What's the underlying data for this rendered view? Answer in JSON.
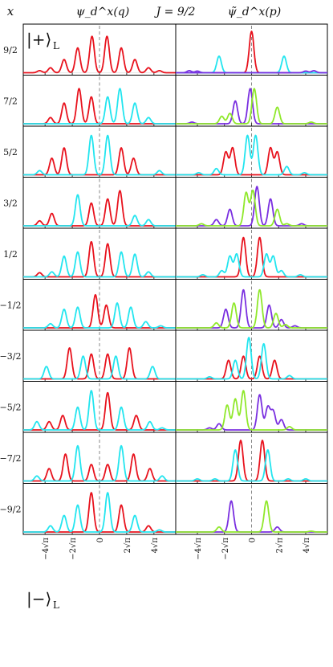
{
  "header": {
    "x_label": "x",
    "left_title": "ψ_d^x(q)",
    "j_label": "J = 9/2",
    "right_title": "ψ̃_d^x(p)"
  },
  "kets": {
    "top": "|+⟩",
    "bottom": "|−⟩",
    "subscript": "L"
  },
  "colors": {
    "red": "#e8121d",
    "cyan": "#22e5ef",
    "purple": "#7a2fe0",
    "green": "#8fe82a",
    "frame": "#000000",
    "dashed": "#888888"
  },
  "chart_data": {
    "type": "line",
    "description_of_axes": "Two columns of stacked panels sharing x-axis in units of sqrt(pi); rows indexed by x",
    "row_labels": [
      "9/2",
      "7/2",
      "5/2",
      "3/2",
      "1/2",
      "−1/2",
      "−3/2",
      "−5/2",
      "−7/2",
      "−9/2"
    ],
    "x_ticks": [
      "−4√π",
      "−2√π",
      "0",
      "2√π",
      "4√π"
    ],
    "x_tick_values": [
      -4,
      -2,
      0,
      2,
      4
    ],
    "xlim": [
      -5.6,
      5.6
    ],
    "panels": {
      "left": [
        [
          {
            "c": "red",
            "peaks": [
              [
                -4.4,
                0.05
              ],
              [
                -3.6,
                0.12
              ],
              [
                -2.6,
                0.32
              ],
              [
                -1.6,
                0.6
              ],
              [
                -0.55,
                0.88
              ],
              [
                0.55,
                0.88
              ],
              [
                1.6,
                0.6
              ],
              [
                2.6,
                0.32
              ],
              [
                3.6,
                0.12
              ],
              [
                4.4,
                0.05
              ]
            ]
          }
        ],
        [
          {
            "c": "red",
            "peaks": [
              [
                -3.6,
                0.15
              ],
              [
                -2.6,
                0.5
              ],
              [
                -1.5,
                0.85
              ],
              [
                -0.6,
                0.65
              ]
            ]
          },
          {
            "c": "cyan",
            "peaks": [
              [
                0.6,
                0.65
              ],
              [
                1.5,
                0.85
              ],
              [
                2.6,
                0.5
              ],
              [
                3.6,
                0.15
              ]
            ]
          }
        ],
        [
          {
            "c": "red",
            "peaks": [
              [
                -3.5,
                0.4
              ],
              [
                -2.6,
                0.65
              ],
              [
                1.6,
                0.65
              ],
              [
                2.5,
                0.4
              ]
            ]
          },
          {
            "c": "cyan",
            "peaks": [
              [
                -4.4,
                0.1
              ],
              [
                -0.6,
                0.95
              ],
              [
                0.6,
                0.95
              ],
              [
                4.4,
                0.1
              ]
            ]
          }
        ],
        [
          {
            "c": "red",
            "peaks": [
              [
                -4.4,
                0.12
              ],
              [
                -3.5,
                0.3
              ],
              [
                -0.6,
                0.55
              ],
              [
                0.6,
                0.65
              ],
              [
                1.5,
                0.85
              ]
            ]
          },
          {
            "c": "cyan",
            "peaks": [
              [
                -1.6,
                0.75
              ],
              [
                2.6,
                0.25
              ],
              [
                3.6,
                0.15
              ]
            ]
          }
        ],
        [
          {
            "c": "red",
            "peaks": [
              [
                -4.4,
                0.1
              ],
              [
                -0.6,
                0.85
              ],
              [
                0.6,
                0.8
              ]
            ]
          },
          {
            "c": "cyan",
            "peaks": [
              [
                -3.5,
                0.12
              ],
              [
                -2.6,
                0.5
              ],
              [
                -1.6,
                0.6
              ],
              [
                1.6,
                0.6
              ],
              [
                2.6,
                0.55
              ],
              [
                3.6,
                0.12
              ]
            ]
          }
        ],
        [
          {
            "c": "red",
            "peaks": [
              [
                -0.3,
                0.8
              ],
              [
                0.5,
                0.55
              ]
            ]
          },
          {
            "c": "cyan",
            "peaks": [
              [
                -3.6,
                0.1
              ],
              [
                -2.6,
                0.45
              ],
              [
                -1.6,
                0.5
              ],
              [
                1.3,
                0.6
              ],
              [
                2.3,
                0.5
              ],
              [
                3.4,
                0.15
              ],
              [
                4.5,
                0.05
              ]
            ]
          }
        ],
        [
          {
            "c": "red",
            "peaks": [
              [
                -2.2,
                0.75
              ],
              [
                -0.6,
                0.6
              ],
              [
                0.6,
                0.6
              ],
              [
                2.2,
                0.75
              ]
            ]
          },
          {
            "c": "cyan",
            "peaks": [
              [
                -3.9,
                0.3
              ],
              [
                -1.2,
                0.55
              ],
              [
                1.2,
                0.55
              ],
              [
                3.9,
                0.3
              ]
            ]
          }
        ],
        [
          {
            "c": "red",
            "peaks": [
              [
                -3.7,
                0.2
              ],
              [
                -2.7,
                0.35
              ],
              [
                0.6,
                0.9
              ],
              [
                2.7,
                0.35
              ]
            ]
          },
          {
            "c": "cyan",
            "peaks": [
              [
                -4.6,
                0.2
              ],
              [
                -1.6,
                0.55
              ],
              [
                -0.6,
                0.95
              ],
              [
                1.6,
                0.55
              ],
              [
                3.7,
                0.2
              ],
              [
                4.6,
                0.05
              ]
            ]
          }
        ],
        [
          {
            "c": "red",
            "peaks": [
              [
                -3.7,
                0.3
              ],
              [
                -2.5,
                0.65
              ],
              [
                -0.6,
                0.4
              ],
              [
                0.6,
                0.4
              ],
              [
                2.5,
                0.65
              ],
              [
                3.7,
                0.3
              ]
            ]
          },
          {
            "c": "cyan",
            "peaks": [
              [
                -4.6,
                0.12
              ],
              [
                -1.6,
                0.85
              ],
              [
                1.6,
                0.85
              ],
              [
                4.6,
                0.12
              ]
            ]
          }
        ],
        [
          {
            "c": "red",
            "peaks": [
              [
                -0.6,
                0.95
              ],
              [
                1.6,
                0.65
              ],
              [
                3.6,
                0.15
              ]
            ]
          },
          {
            "c": "cyan",
            "peaks": [
              [
                -3.6,
                0.15
              ],
              [
                -2.6,
                0.4
              ],
              [
                -1.6,
                0.65
              ],
              [
                0.6,
                0.95
              ],
              [
                2.6,
                0.4
              ],
              [
                4.4,
                0.05
              ]
            ]
          }
        ]
      ],
      "right": [
        [
          {
            "c": "red",
            "peaks": [
              [
                0,
                1.0
              ]
            ]
          },
          {
            "c": "purple",
            "peaks": [
              [
                -4.6,
                0.05
              ],
              [
                -4.0,
                0.04
              ]
            ]
          },
          {
            "c": "cyan",
            "peaks": [
              [
                -2.4,
                0.4
              ],
              [
                2.4,
                0.4
              ]
            ]
          },
          {
            "c": "purple",
            "peaks": [
              [
                4.0,
                0.04
              ],
              [
                4.6,
                0.05
              ]
            ]
          }
        ],
        [
          {
            "c": "purple",
            "peaks": [
              [
                -4.4,
                0.04
              ],
              [
                -1.2,
                0.55
              ],
              [
                -0.1,
                0.85
              ]
            ]
          },
          {
            "c": "green",
            "peaks": [
              [
                -2.2,
                0.18
              ],
              [
                -1.6,
                0.25
              ],
              [
                0.2,
                0.85
              ],
              [
                1.9,
                0.4
              ],
              [
                4.4,
                0.04
              ]
            ]
          }
        ],
        [
          {
            "c": "red",
            "peaks": [
              [
                -1.9,
                0.55
              ],
              [
                -1.4,
                0.65
              ],
              [
                1.4,
                0.65
              ],
              [
                1.9,
                0.55
              ]
            ]
          },
          {
            "c": "cyan",
            "peaks": [
              [
                -3.9,
                0.05
              ],
              [
                -2.6,
                0.15
              ],
              [
                -0.3,
                0.95
              ],
              [
                0.3,
                0.95
              ],
              [
                2.6,
                0.2
              ],
              [
                3.9,
                0.05
              ]
            ]
          }
        ],
        [
          {
            "c": "purple",
            "peaks": [
              [
                -2.6,
                0.15
              ],
              [
                -1.6,
                0.4
              ],
              [
                0.4,
                0.95
              ],
              [
                1.4,
                0.65
              ],
              [
                3.7,
                0.05
              ]
            ]
          },
          {
            "c": "green",
            "peaks": [
              [
                -3.7,
                0.05
              ],
              [
                -0.4,
                0.8
              ],
              [
                0.1,
                0.85
              ],
              [
                1.9,
                0.4
              ],
              [
                2.6,
                0.05
              ]
            ]
          }
        ],
        [
          {
            "c": "red",
            "peaks": [
              [
                -0.6,
                0.95
              ],
              [
                0.6,
                0.95
              ]
            ]
          },
          {
            "c": "cyan",
            "peaks": [
              [
                -3.6,
                0.05
              ],
              [
                -2.2,
                0.15
              ],
              [
                -1.6,
                0.5
              ],
              [
                -1.1,
                0.55
              ],
              [
                1.1,
                0.55
              ],
              [
                1.6,
                0.5
              ],
              [
                2.2,
                0.15
              ],
              [
                3.6,
                0.05
              ]
            ]
          }
        ],
        [
          {
            "c": "purple",
            "peaks": [
              [
                -1.9,
                0.45
              ],
              [
                -0.6,
                0.92
              ],
              [
                1.3,
                0.55
              ],
              [
                2.2,
                0.2
              ],
              [
                3.2,
                0.05
              ]
            ]
          },
          {
            "c": "green",
            "peaks": [
              [
                -2.6,
                0.12
              ],
              [
                -1.3,
                0.6
              ],
              [
                0.6,
                0.92
              ],
              [
                1.8,
                0.35
              ],
              [
                2.5,
                0.08
              ]
            ]
          }
        ],
        [
          {
            "c": "red",
            "peaks": [
              [
                -1.7,
                0.45
              ],
              [
                -0.6,
                0.55
              ],
              [
                0.6,
                0.55
              ],
              [
                1.7,
                0.45
              ]
            ]
          },
          {
            "c": "cyan",
            "peaks": [
              [
                -3.1,
                0.05
              ],
              [
                -1.2,
                0.45
              ],
              [
                -0.2,
                1.0
              ],
              [
                0.9,
                0.85
              ],
              [
                2.8,
                0.08
              ]
            ]
          }
        ],
        [
          {
            "c": "purple",
            "peaks": [
              [
                -3.1,
                0.05
              ],
              [
                -2.4,
                0.15
              ],
              [
                0.6,
                0.85
              ],
              [
                1.2,
                0.55
              ],
              [
                1.6,
                0.45
              ],
              [
                2.2,
                0.25
              ]
            ]
          },
          {
            "c": "green",
            "peaks": [
              [
                -1.8,
                0.6
              ],
              [
                -1.2,
                0.75
              ],
              [
                -0.6,
                0.95
              ],
              [
                2.8,
                0.08
              ]
            ]
          }
        ],
        [
          {
            "c": "red",
            "peaks": [
              [
                -0.8,
                0.98
              ],
              [
                0.8,
                0.98
              ]
            ]
          },
          {
            "c": "cyan",
            "peaks": [
              [
                -4.0,
                0.05
              ],
              [
                -2.7,
                0.05
              ],
              [
                -1.2,
                0.75
              ],
              [
                1.2,
                0.75
              ],
              [
                2.7,
                0.05
              ],
              [
                4.0,
                0.05
              ]
            ]
          }
        ],
        [
          {
            "c": "purple",
            "peaks": [
              [
                -1.5,
                0.75
              ],
              [
                1.9,
                0.12
              ]
            ]
          },
          {
            "c": "green",
            "peaks": [
              [
                -2.4,
                0.12
              ],
              [
                1.1,
                0.75
              ],
              [
                4.4,
                0.02
              ]
            ]
          }
        ]
      ]
    }
  }
}
